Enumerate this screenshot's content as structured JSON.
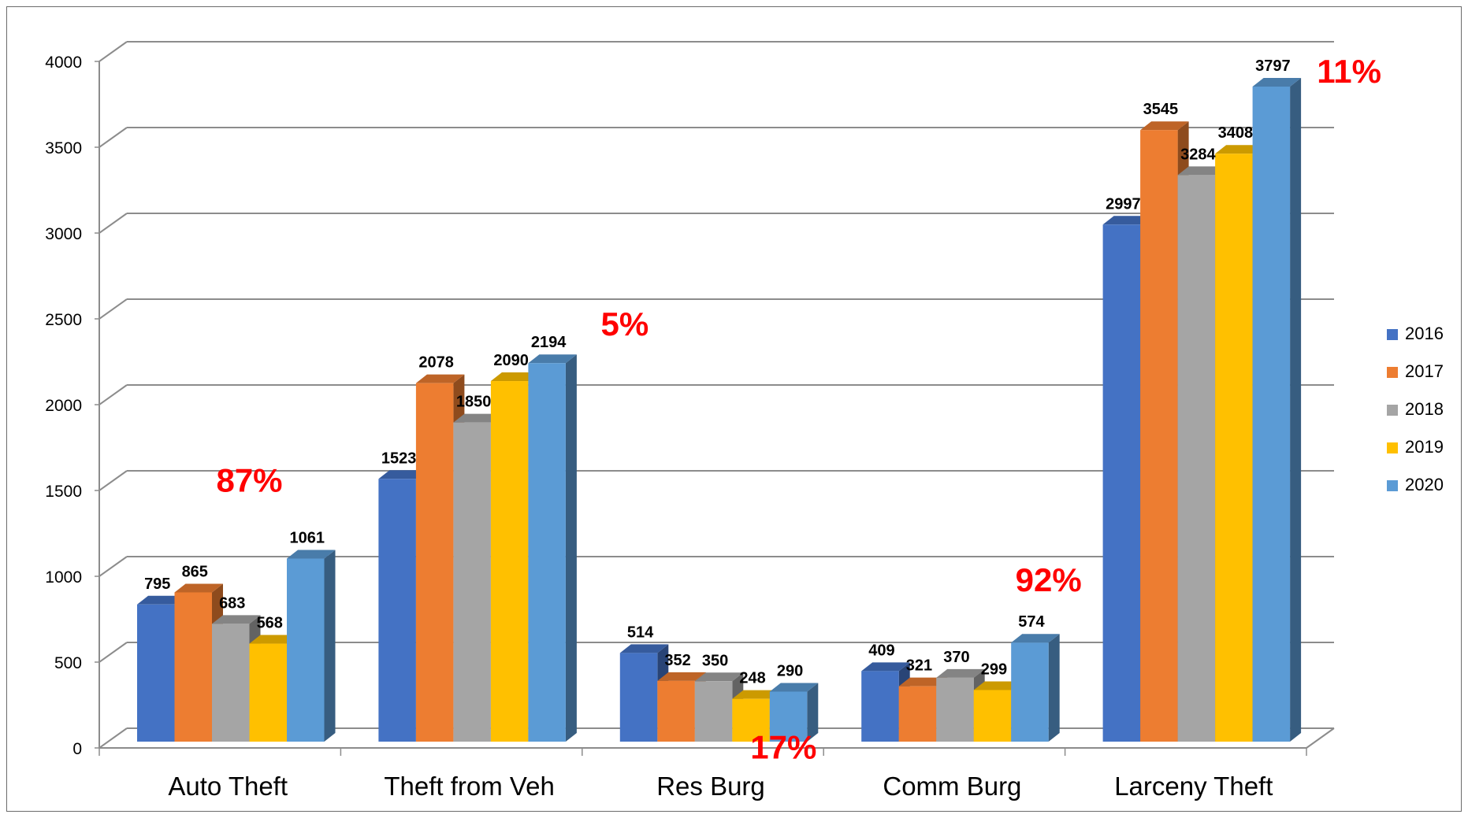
{
  "chart_data": {
    "type": "bar",
    "categories": [
      "Auto Theft",
      "Theft from Veh",
      "Res Burg",
      "Comm Burg",
      "Larceny Theft"
    ],
    "series": [
      {
        "name": "2016",
        "color": "#4472c4",
        "values": [
          795,
          1523,
          514,
          409,
          2997
        ]
      },
      {
        "name": "2017",
        "color": "#ed7d31",
        "values": [
          865,
          2078,
          352,
          321,
          3545
        ]
      },
      {
        "name": "2018",
        "color": "#a5a5a5",
        "values": [
          683,
          1850,
          350,
          370,
          3284
        ]
      },
      {
        "name": "2019",
        "color": "#ffc000",
        "values": [
          568,
          2090,
          248,
          299,
          3408
        ]
      },
      {
        "name": "2020",
        "color": "#5b9bd5",
        "values": [
          1061,
          2194,
          290,
          574,
          3797
        ]
      }
    ],
    "annotations": [
      "87%",
      "5%",
      "17%",
      "92%",
      "11%"
    ],
    "annotation_color": "#ff0000",
    "ylim": [
      0,
      4000
    ],
    "yticks": [
      0,
      500,
      1000,
      1500,
      2000,
      2500,
      3000,
      3500,
      4000
    ],
    "grid": true,
    "style": "3d-clustered-column",
    "legend_position": "right"
  }
}
